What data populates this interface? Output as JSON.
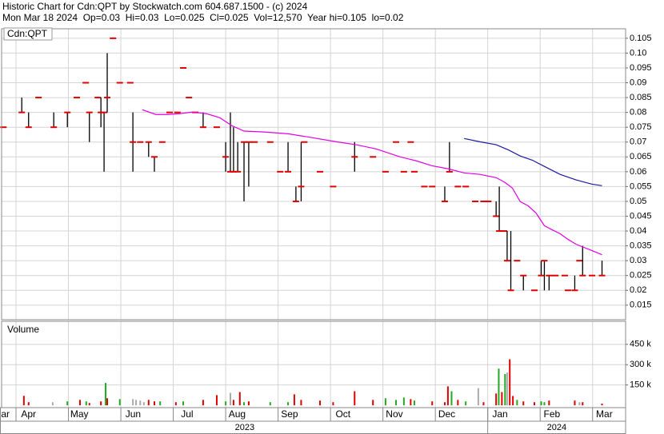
{
  "header": {
    "title": "Historic Chart for Cdn:QPT by Stockwatch.com 604.687.1500 - (c) 2024",
    "quote": "Mon Mar 18 2024  Op=0.03  Hi=0.03  Lo=0.025  Cl=0.025  Vol=12,570  Year hi=0.105  lo=0.02"
  },
  "chart_data": [
    {
      "type": "ohlc",
      "title": "Cdn:QPT",
      "bar_color": "#000000",
      "close_color": "#e00000",
      "grid": true,
      "xlim": [
        0.725,
        12.63
      ],
      "ylim": [
        0.0101,
        0.1082
      ],
      "yticks": [
        0.015,
        0.02,
        0.025,
        0.03,
        0.035,
        0.04,
        0.045,
        0.05,
        0.055,
        0.06,
        0.065,
        0.07,
        0.075,
        0.08,
        0.085,
        0.09,
        0.095,
        {
          "value": 0.1,
          "label": "0.10"
        },
        0.105
      ],
      "x": [
        0.76,
        1.11,
        1.24,
        1.43,
        1.72,
        1.98,
        2.16,
        2.33,
        2.4,
        2.56,
        2.62,
        2.68,
        2.74,
        2.85,
        2.98,
        3.18,
        3.23,
        3.37,
        3.53,
        3.64,
        3.79,
        3.93,
        4.08,
        4.19,
        4.3,
        4.42,
        4.57,
        4.83,
        5.0,
        5.09,
        5.15,
        5.23,
        5.35,
        5.44,
        5.55,
        5.85,
        6.04,
        6.19,
        6.34,
        6.44,
        6.5,
        6.8,
        7.05,
        7.46,
        7.81,
        8.05,
        8.25,
        8.4,
        8.53,
        8.6,
        8.79,
        8.94,
        9.18,
        9.27,
        9.43,
        9.58,
        9.76,
        9.92,
        10.01,
        10.16,
        10.22,
        10.31,
        10.37,
        10.44,
        10.56,
        10.68,
        10.89,
        11.02,
        11.08,
        11.17,
        11.29,
        11.47,
        11.53,
        11.66,
        11.75,
        11.81,
        11.99,
        12.18
      ],
      "high": [
        0.075,
        0.085,
        0.08,
        0.085,
        0.08,
        0.08,
        0.085,
        0.09,
        0.08,
        0.085,
        0.085,
        0.08,
        0.1,
        0.105,
        0.09,
        0.09,
        0.08,
        0.07,
        0.07,
        0.065,
        0.07,
        0.08,
        0.08,
        0.095,
        0.085,
        0.08,
        0.08,
        0.075,
        0.07,
        0.08,
        0.075,
        0.07,
        0.07,
        0.07,
        0.07,
        0.07,
        0.06,
        0.07,
        0.055,
        0.07,
        0.07,
        0.06,
        0.055,
        0.07,
        0.065,
        0.06,
        0.07,
        0.06,
        0.07,
        0.06,
        0.055,
        0.055,
        0.055,
        0.07,
        0.055,
        0.055,
        0.05,
        0.05,
        0.05,
        0.05,
        0.055,
        0.04,
        0.04,
        0.04,
        0.03,
        0.025,
        0.02,
        0.03,
        0.03,
        0.025,
        0.025,
        0.025,
        0.02,
        0.025,
        0.03,
        0.035,
        0.025,
        0.03
      ],
      "low": [
        0.075,
        0.08,
        0.075,
        0.085,
        0.075,
        0.075,
        0.085,
        0.09,
        0.07,
        0.085,
        0.075,
        0.06,
        0.08,
        0.105,
        0.09,
        0.09,
        0.06,
        0.07,
        0.065,
        0.06,
        0.07,
        0.08,
        0.08,
        0.095,
        0.085,
        0.08,
        0.075,
        0.075,
        0.06,
        0.06,
        0.06,
        0.06,
        0.05,
        0.055,
        0.07,
        0.07,
        0.06,
        0.06,
        0.05,
        0.05,
        0.07,
        0.06,
        0.055,
        0.06,
        0.065,
        0.06,
        0.07,
        0.06,
        0.07,
        0.06,
        0.055,
        0.055,
        0.05,
        0.06,
        0.055,
        0.055,
        0.05,
        0.05,
        0.05,
        0.045,
        0.04,
        0.04,
        0.03,
        0.02,
        0.03,
        0.02,
        0.02,
        0.025,
        0.02,
        0.02,
        0.025,
        0.025,
        0.02,
        0.02,
        0.03,
        0.025,
        0.025,
        0.025
      ],
      "close": [
        0.075,
        0.08,
        0.075,
        0.085,
        0.075,
        0.08,
        0.085,
        0.09,
        0.08,
        0.085,
        0.08,
        0.08,
        0.085,
        0.105,
        0.09,
        0.09,
        0.07,
        0.07,
        0.07,
        0.065,
        0.07,
        0.08,
        0.08,
        0.095,
        0.085,
        0.08,
        0.075,
        0.075,
        0.065,
        0.06,
        0.06,
        0.06,
        0.07,
        0.07,
        0.07,
        0.07,
        0.06,
        0.06,
        0.05,
        0.055,
        0.07,
        0.06,
        0.055,
        0.065,
        0.065,
        0.06,
        0.07,
        0.06,
        0.07,
        0.06,
        0.055,
        0.055,
        0.05,
        0.06,
        0.055,
        0.055,
        0.05,
        0.05,
        0.05,
        0.045,
        0.04,
        0.04,
        0.03,
        0.02,
        0.03,
        0.025,
        0.02,
        0.025,
        0.03,
        0.025,
        0.025,
        0.025,
        0.02,
        0.02,
        0.03,
        0.025,
        0.025,
        0.025
      ],
      "overlays": [
        {
          "color": "#e000e0",
          "x": [
            3.41,
            3.67,
            3.9,
            4.13,
            4.36,
            4.63,
            4.89,
            5.12,
            5.35,
            5.73,
            6.19,
            6.65,
            7.11,
            7.49,
            7.87,
            8.33,
            8.63,
            8.94,
            9.24,
            9.55,
            9.85,
            10.16,
            10.31,
            10.47,
            10.62,
            10.77,
            10.92,
            11.08,
            11.23,
            11.38,
            11.53,
            11.69,
            11.99,
            12.18
          ],
          "values": [
            0.0809,
            0.0793,
            0.0793,
            0.0796,
            0.0801,
            0.0796,
            0.0782,
            0.0755,
            0.0737,
            0.0734,
            0.0728,
            0.0715,
            0.0701,
            0.0691,
            0.0677,
            0.065,
            0.0637,
            0.062,
            0.061,
            0.0596,
            0.0591,
            0.058,
            0.0566,
            0.0545,
            0.0499,
            0.0485,
            0.0461,
            0.0418,
            0.0404,
            0.0391,
            0.0372,
            0.0355,
            0.0334,
            0.032
          ]
        },
        {
          "color": "#1a1aa0",
          "x": [
            9.55,
            9.85,
            10.16,
            10.39,
            10.62,
            10.85,
            11.08,
            11.38,
            11.69,
            11.99,
            12.18
          ],
          "values": [
            0.0712,
            0.0701,
            0.0691,
            0.0674,
            0.0653,
            0.0639,
            0.0618,
            0.0591,
            0.0572,
            0.0558,
            0.0553
          ]
        }
      ]
    },
    {
      "type": "bar",
      "title": "Volume",
      "grid": true,
      "xlim": [
        0.725,
        12.63
      ],
      "ylim": [
        -17000,
        620000
      ],
      "yticks": [
        {
          "value": 150000,
          "label": "150 k"
        },
        {
          "value": 300000,
          "label": "300 k"
        },
        {
          "value": 450000,
          "label": "450 k"
        }
      ],
      "xticks": [
        {
          "value": 0,
          "label": "ar"
        },
        {
          "value": 1,
          "label": "Apr"
        },
        {
          "value": 2,
          "label": "May"
        },
        {
          "value": 3,
          "label": "Jun"
        },
        {
          "value": 4,
          "label": "Jul"
        },
        {
          "value": 5,
          "label": "Aug"
        },
        {
          "value": 6,
          "label": "Sep"
        },
        {
          "value": 7,
          "label": "Oct"
        },
        {
          "value": 8,
          "label": "Nov"
        },
        {
          "value": 9,
          "label": "Dec"
        },
        {
          "value": 10,
          "label": "Jan"
        },
        {
          "value": 11,
          "label": "Feb"
        },
        {
          "value": 12,
          "label": "Mar"
        }
      ],
      "year_ticks": [
        {
          "value": -2,
          "label": "2023"
        },
        {
          "value": 10,
          "label": "2024"
        }
      ],
      "x": [
        1.15,
        1.24,
        1.7,
        1.98,
        2.22,
        2.34,
        2.4,
        2.62,
        2.71,
        2.74,
        2.98,
        3.23,
        3.29,
        3.37,
        3.44,
        3.53,
        3.64,
        3.75,
        4.05,
        4.19,
        4.57,
        4.83,
        5.0,
        5.09,
        5.15,
        5.27,
        5.35,
        5.44,
        5.85,
        6.19,
        6.31,
        6.44,
        6.8,
        7.05,
        7.46,
        7.81,
        8.05,
        8.25,
        8.4,
        8.53,
        8.6,
        8.94,
        9.18,
        9.24,
        9.31,
        9.43,
        9.58,
        9.82,
        9.92,
        10.16,
        10.21,
        10.27,
        10.33,
        10.37,
        10.42,
        10.48,
        10.56,
        10.68,
        10.89,
        11.02,
        11.08,
        11.17,
        11.66,
        11.75,
        11.81,
        12.18
      ],
      "values": [
        70000,
        23000,
        23000,
        29000,
        40000,
        29000,
        17000,
        29000,
        165000,
        52000,
        46000,
        46000,
        40000,
        35000,
        23000,
        40000,
        29000,
        29000,
        23000,
        29000,
        40000,
        75000,
        29000,
        92000,
        40000,
        98000,
        23000,
        29000,
        23000,
        23000,
        81000,
        40000,
        35000,
        23000,
        104000,
        40000,
        52000,
        40000,
        58000,
        46000,
        35000,
        29000,
        23000,
        140000,
        104000,
        40000,
        29000,
        127000,
        23000,
        87000,
        271000,
        98000,
        231000,
        242000,
        340000,
        69000,
        40000,
        29000,
        23000,
        29000,
        23000,
        35000,
        35000,
        23000,
        23000,
        12570
      ],
      "colors": [
        "#e00000",
        "#e00000",
        "#aaaaaa",
        "#22aa22",
        "#e00000",
        "#22aa22",
        "#e00000",
        "#e00000",
        "#22aa22",
        "#e00000",
        "#22aa22",
        "#aaaaaa",
        "#aaaaaa",
        "#aaaaaa",
        "#aaaaaa",
        "#e00000",
        "#e00000",
        "#22aa22",
        "#e00000",
        "#22aa22",
        "#e00000",
        "#e00000",
        "#22aa22",
        "#aaaaaa",
        "#e00000",
        "#e00000",
        "#22aa22",
        "#e00000",
        "#22aa22",
        "#22aa22",
        "#e00000",
        "#e00000",
        "#e00000",
        "#e00000",
        "#e00000",
        "#e00000",
        "#22aa22",
        "#22aa22",
        "#22aa22",
        "#e00000",
        "#22aa22",
        "#e00000",
        "#e00000",
        "#e00000",
        "#22aa22",
        "#e00000",
        "#22aa22",
        "#aaaaaa",
        "#e00000",
        "#e00000",
        "#22aa22",
        "#e00000",
        "#22aa22",
        "#aaaaaa",
        "#e00000",
        "#e00000",
        "#22aa22",
        "#e00000",
        "#e00000",
        "#22aa22",
        "#22aa22",
        "#e00000",
        "#e00000",
        "#aaaaaa",
        "#e00000",
        "#e00000"
      ]
    }
  ]
}
